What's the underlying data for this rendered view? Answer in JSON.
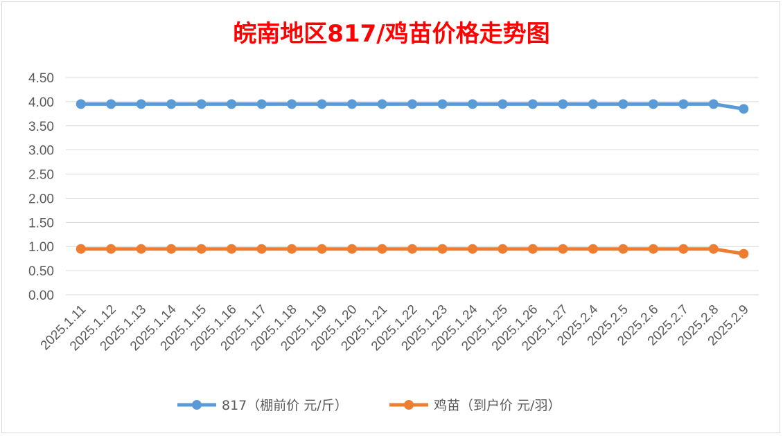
{
  "chart_data": {
    "type": "line",
    "title": "皖南地区817/鸡苗价格走势图",
    "xlabel": "",
    "ylabel": "",
    "categories": [
      "2025.1.11",
      "2025.1.12",
      "2025.1.13",
      "2025.1.14",
      "2025.1.15",
      "2025.1.16",
      "2025.1.17",
      "2025.1.18",
      "2025.1.19",
      "2025.1.20",
      "2025.1.21",
      "2025.1.22",
      "2025.1.23",
      "2025.1.24",
      "2025.1.25",
      "2025.1.26",
      "2025.1.27",
      "2025.2.4",
      "2025.2.5",
      "2025.2.6",
      "2025.2.7",
      "2025.2.8",
      "2025.2.9"
    ],
    "y_ticks": [
      "0.00",
      "0.50",
      "1.00",
      "1.50",
      "2.00",
      "2.50",
      "3.00",
      "3.50",
      "4.00",
      "4.50"
    ],
    "ylim": [
      0,
      4.5
    ],
    "grid": true,
    "legend_position": "bottom",
    "series": [
      {
        "name": "817（棚前价 元/斤）",
        "color": "#5b9bd5",
        "values": [
          3.95,
          3.95,
          3.95,
          3.95,
          3.95,
          3.95,
          3.95,
          3.95,
          3.95,
          3.95,
          3.95,
          3.95,
          3.95,
          3.95,
          3.95,
          3.95,
          3.95,
          3.95,
          3.95,
          3.95,
          3.95,
          3.95,
          3.85
        ]
      },
      {
        "name": "鸡苗（到户价 元/羽）",
        "color": "#ed7d31",
        "values": [
          0.95,
          0.95,
          0.95,
          0.95,
          0.95,
          0.95,
          0.95,
          0.95,
          0.95,
          0.95,
          0.95,
          0.95,
          0.95,
          0.95,
          0.95,
          0.95,
          0.95,
          0.95,
          0.95,
          0.95,
          0.95,
          0.95,
          0.85
        ]
      }
    ]
  }
}
